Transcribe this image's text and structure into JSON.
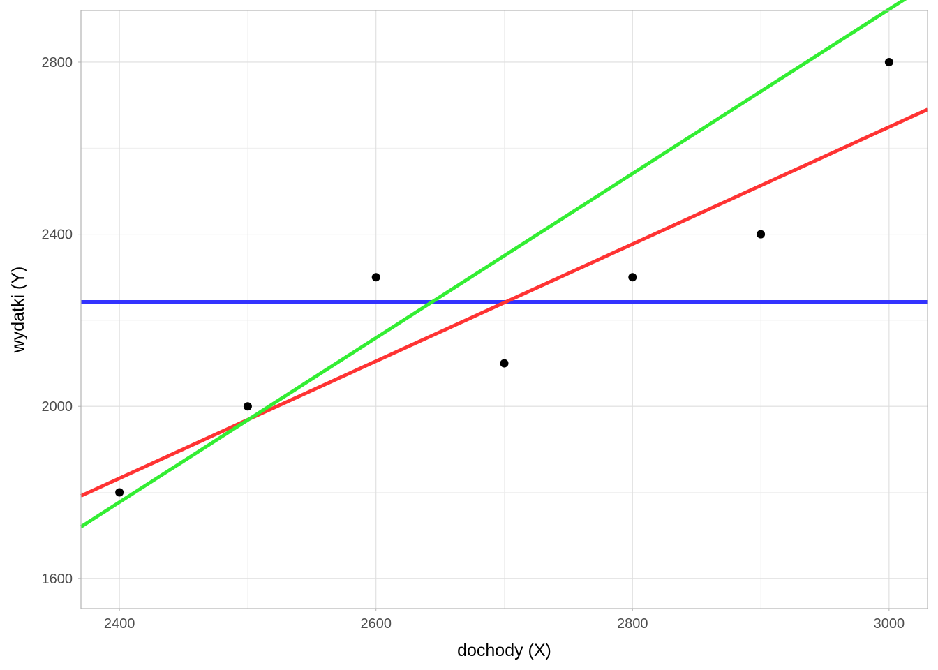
{
  "chart_data": {
    "type": "scatter",
    "title": "",
    "xlabel": "dochody (X)",
    "ylabel": "wydatki (Y)",
    "xlim": [
      2370,
      3030
    ],
    "ylim": [
      1530,
      2920
    ],
    "x_ticks": [
      2400,
      2600,
      2800,
      3000
    ],
    "y_ticks": [
      1600,
      2000,
      2400,
      2800
    ],
    "grid": true,
    "legend": "none",
    "points": {
      "color": "#000000",
      "x": [
        2400,
        2500,
        2600,
        2700,
        2800,
        2900,
        3000
      ],
      "y": [
        1800,
        2000,
        2300,
        2100,
        2300,
        2400,
        2800
      ]
    },
    "lines": [
      {
        "color": "#3333ff",
        "x": [
          2370,
          3030
        ],
        "y": [
          2242.86,
          2242.86
        ]
      },
      {
        "color": "#ff3333",
        "x": [
          2370,
          3030
        ],
        "y": [
          1792,
          2690
        ]
      },
      {
        "color": "#33ee33",
        "x": [
          2370,
          3030
        ],
        "y": [
          1720,
          2980
        ]
      }
    ]
  }
}
